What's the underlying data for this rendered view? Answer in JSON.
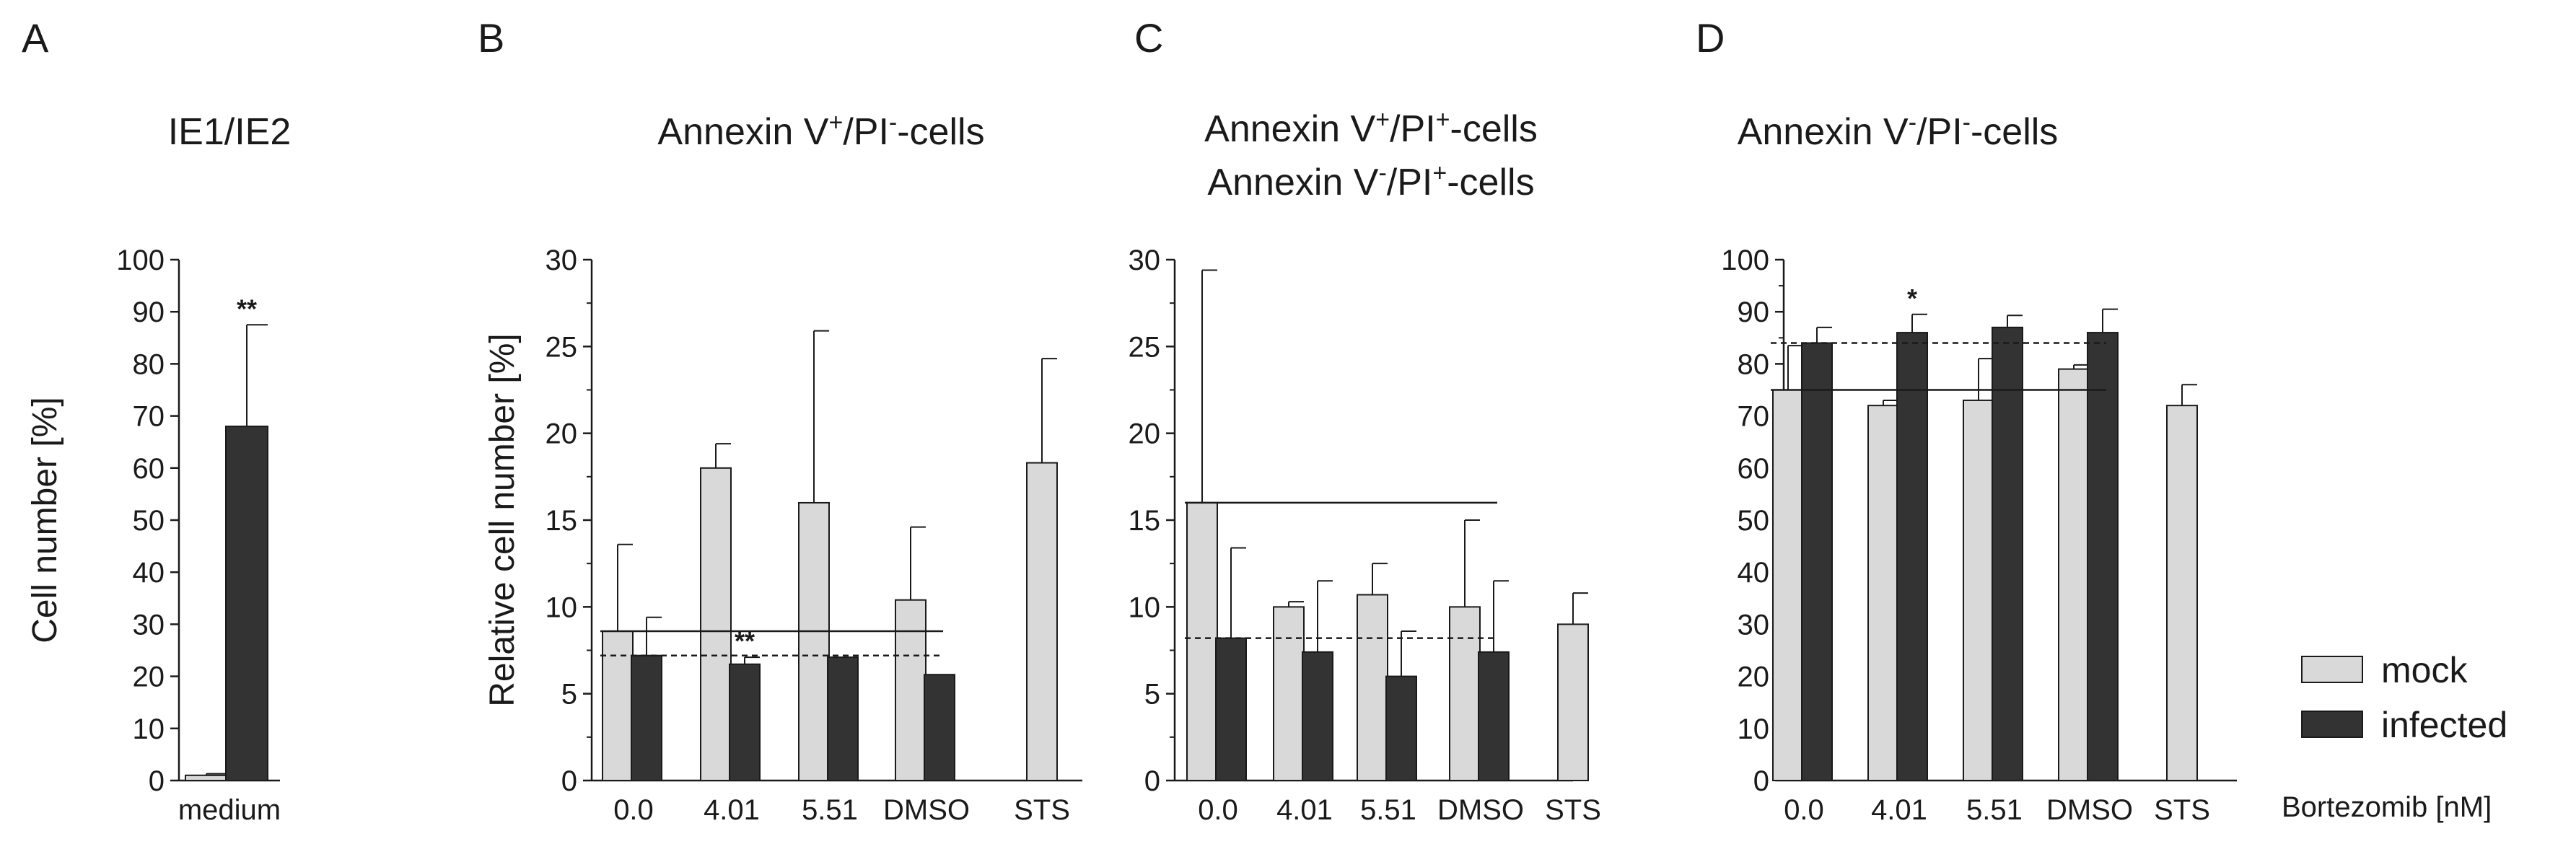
{
  "colors": {
    "mock": "#d9d9d9",
    "infected": "#333333",
    "axis": "#1a1a1a"
  },
  "legend": {
    "mock": "mock",
    "infected": "infected"
  },
  "x_axis_note": "Bortezomib [nM]",
  "chart_data": [
    {
      "id": "A",
      "type": "bar",
      "panel_letter": "A",
      "title_lines": [
        [
          {
            "t": "IE1/IE2"
          }
        ]
      ],
      "ylabel": "Cell number [%]",
      "ylim": [
        0,
        100
      ],
      "yticks": [
        0,
        10,
        20,
        30,
        40,
        50,
        60,
        70,
        80,
        90,
        100
      ],
      "categories": [
        "medium"
      ],
      "series": [
        {
          "name": "mock",
          "values": [
            1
          ],
          "errors": [
            0.3
          ]
        },
        {
          "name": "infected",
          "values": [
            68
          ],
          "errors": [
            19.5
          ]
        }
      ],
      "annotations": [
        {
          "text": "**",
          "category": 0,
          "series": 1
        }
      ],
      "ref_lines": []
    },
    {
      "id": "B",
      "type": "bar",
      "panel_letter": "B",
      "title_lines": [
        [
          {
            "t": "Annexin V"
          },
          {
            "t": "+",
            "sup": true
          },
          {
            "t": "/PI"
          },
          {
            "t": "-",
            "sup": true
          },
          {
            "t": "-cells"
          }
        ]
      ],
      "ylabel": "Relative cell number [%]",
      "ylim": [
        0,
        30
      ],
      "yticks": [
        0,
        5,
        10,
        15,
        20,
        25,
        30
      ],
      "categories": [
        "0.0",
        "4.01",
        "5.51",
        "DMSO",
        "STS"
      ],
      "series": [
        {
          "name": "mock",
          "values": [
            8.6,
            18.0,
            16.0,
            10.4,
            18.3
          ],
          "errors": [
            5.0,
            1.4,
            9.9,
            4.2,
            6.0
          ]
        },
        {
          "name": "infected",
          "values": [
            7.2,
            6.7,
            7.1,
            6.1,
            null
          ],
          "errors": [
            2.2,
            0.4,
            0,
            0,
            null
          ]
        }
      ],
      "annotations": [
        {
          "text": "**",
          "category": 1,
          "series": 1
        }
      ],
      "ref_lines": [
        {
          "series": "mock",
          "value": 8.6,
          "style": "solid",
          "from": 0,
          "to": 3
        },
        {
          "series": "infected",
          "value": 7.2,
          "style": "dashed",
          "from": 0,
          "to": 3
        }
      ]
    },
    {
      "id": "C",
      "type": "bar",
      "panel_letter": "C",
      "title_lines": [
        [
          {
            "t": "Annexin V"
          },
          {
            "t": "+",
            "sup": true
          },
          {
            "t": "/PI"
          },
          {
            "t": "+",
            "sup": true
          },
          {
            "t": "-cells"
          }
        ],
        [
          {
            "t": "Annexin V"
          },
          {
            "t": "-",
            "sup": true
          },
          {
            "t": "/PI"
          },
          {
            "t": "+",
            "sup": true
          },
          {
            "t": "-cells"
          }
        ]
      ],
      "ylabel": "",
      "ylim": [
        0,
        30
      ],
      "yticks": [
        0,
        5,
        10,
        15,
        20,
        25,
        30
      ],
      "categories": [
        "0.0",
        "4.01",
        "5.51",
        "DMSO",
        "STS"
      ],
      "series": [
        {
          "name": "mock",
          "values": [
            16.0,
            10.0,
            10.7,
            10.0,
            9.0
          ],
          "errors": [
            13.4,
            0.3,
            1.8,
            5.0,
            1.8
          ]
        },
        {
          "name": "infected",
          "values": [
            8.2,
            7.4,
            6.0,
            7.4,
            null
          ],
          "errors": [
            5.2,
            4.1,
            2.6,
            4.1,
            null
          ]
        }
      ],
      "annotations": [],
      "ref_lines": [
        {
          "series": "mock",
          "value": 16.0,
          "style": "solid",
          "from": 0,
          "to": 3
        },
        {
          "series": "infected",
          "value": 8.2,
          "style": "dashed",
          "from": 0,
          "to": 3
        }
      ]
    },
    {
      "id": "D",
      "type": "bar",
      "panel_letter": "D",
      "title_lines": [
        [
          {
            "t": "Annexin V"
          },
          {
            "t": "-",
            "sup": true
          },
          {
            "t": "/PI"
          },
          {
            "t": "-",
            "sup": true
          },
          {
            "t": "-cells"
          }
        ]
      ],
      "ylabel": "",
      "ylim": [
        0,
        100
      ],
      "yticks": [
        0,
        10,
        20,
        30,
        40,
        50,
        60,
        70,
        80,
        90,
        100
      ],
      "categories": [
        "0.0",
        "4.01",
        "5.51",
        "DMSO",
        "STS"
      ],
      "series": [
        {
          "name": "mock",
          "values": [
            75,
            72,
            73,
            79,
            72
          ],
          "errors": [
            8.5,
            1,
            8,
            0.8,
            4
          ]
        },
        {
          "name": "infected",
          "values": [
            84,
            86,
            87,
            86,
            null
          ],
          "errors": [
            3,
            3.5,
            2.3,
            4.5,
            null
          ]
        }
      ],
      "annotations": [
        {
          "text": "*",
          "category": 1,
          "series": 1
        }
      ],
      "ref_lines": [
        {
          "series": "mock",
          "value": 75,
          "style": "solid",
          "from": 0,
          "to": 3
        },
        {
          "series": "infected",
          "value": 84,
          "style": "dashed",
          "from": 0,
          "to": 3
        }
      ]
    }
  ]
}
